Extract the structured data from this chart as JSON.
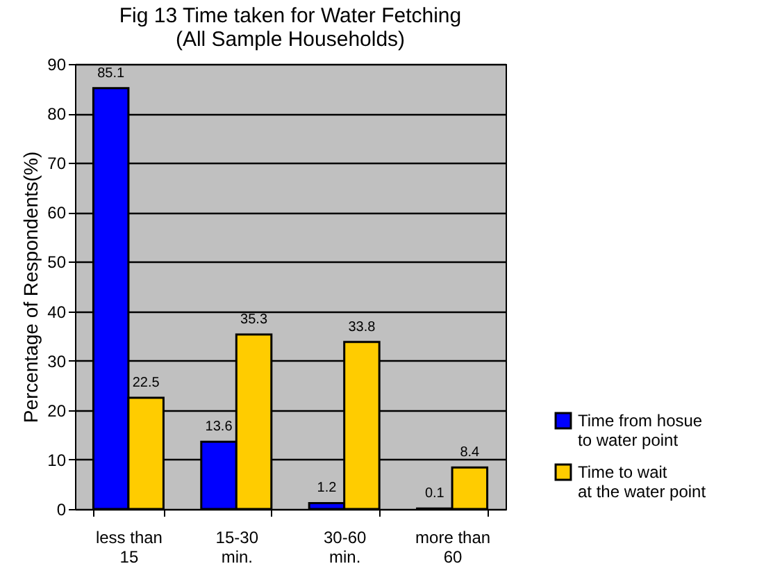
{
  "chart_data": {
    "type": "bar",
    "title": "Fig 13  Time taken for Water Fetching",
    "subtitle": "(All Sample Households)",
    "ylabel": "Percentage of Respondents(%)",
    "categories": [
      "less than 15",
      "15-30 min.",
      "30-60 min.",
      "more than 60"
    ],
    "series": [
      {
        "name": "Time from hosue to water point",
        "color": "#0000ff",
        "values": [
          85.1,
          13.6,
          1.2,
          0.1
        ]
      },
      {
        "name": "Time to wait at the water point",
        "color": "#ffcc00",
        "values": [
          22.5,
          35.3,
          33.8,
          8.4
        ]
      }
    ],
    "ylim": [
      0,
      90
    ],
    "yticks": [
      0,
      10,
      20,
      30,
      40,
      50,
      60,
      70,
      80,
      90
    ],
    "grid": "y",
    "legend": "bottom right",
    "data_labels": true
  }
}
